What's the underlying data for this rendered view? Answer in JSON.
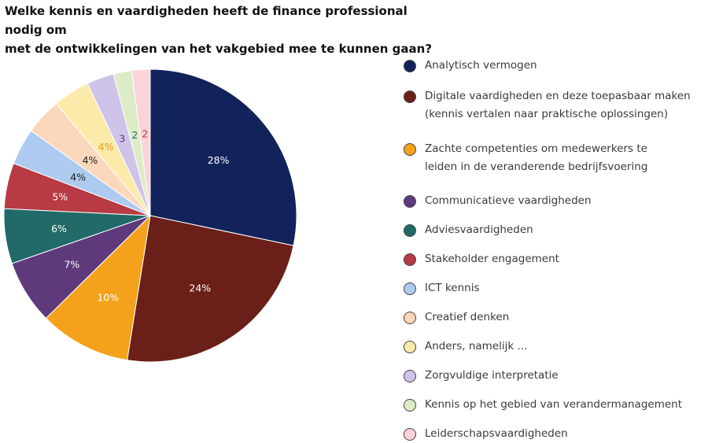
{
  "title": {
    "line1": "Welke kennis en vaardigheden heeft de finance professional nodig om",
    "line2": "met de ontwikkelingen van het vakgebied mee te kunnen gaan?"
  },
  "chart_data": {
    "type": "pie",
    "title": "Welke kennis en vaardigheden heeft de finance professional nodig om met de ontwikkelingen van het vakgebied mee te kunnen gaan?",
    "legend_position": "right",
    "slices": [
      {
        "label": "Analytisch vermogen",
        "value": 28,
        "display": "28%",
        "color": "#12225a",
        "label_color": "#ffffff"
      },
      {
        "label": "Digitale vaardigheden en deze toepasbaar maken (kennis vertalen naar praktische oplossingen)",
        "label_lines": [
          "Digitale vaardigheden en deze toepasbaar maken",
          "(kennis vertalen naar praktische oplossingen)"
        ],
        "value": 24,
        "display": "24%",
        "color": "#6b1f19",
        "label_color": "#ffffff"
      },
      {
        "label": "Zachte competenties om medewerkers te leiden in de veranderende bedrijfsvoering",
        "label_lines": [
          "Zachte competenties om medewerkers te",
          "leiden in de veranderende bedrijfsvoering"
        ],
        "value": 10,
        "display": "10%",
        "color": "#f4a21b",
        "label_color": "#ffffff"
      },
      {
        "label": "Communicatieve vaardigheden",
        "value": 7,
        "display": "7%",
        "color": "#5e3a7d",
        "label_color": "#ffffff"
      },
      {
        "label": "Adviesvaardigheden",
        "value": 6,
        "display": "6%",
        "color": "#216a68",
        "label_color": "#ffffff"
      },
      {
        "label": "Stakeholder engagement",
        "value": 5,
        "display": "5%",
        "color": "#b73a45",
        "label_color": "#ffffff"
      },
      {
        "label": "ICT kennis",
        "value": 4,
        "display": "4%",
        "color": "#aecaf0",
        "label_color": "#222222"
      },
      {
        "label": "Creatief denken",
        "value": 4,
        "display": "4%",
        "color": "#fbd7bc",
        "label_color": "#222222"
      },
      {
        "label": "Anders, namelijk ...",
        "value": 4,
        "display": "4%",
        "color": "#fbeaaa",
        "label_color": "#e0a020"
      },
      {
        "label": "Zorgvuldige interpretatie",
        "value": 3,
        "display": "3",
        "color": "#d0c3ea",
        "label_color": "#5e3a7d"
      },
      {
        "label": "Kennis op het gebied van verandermanagement",
        "value": 2,
        "display": "2",
        "color": "#dcecc6",
        "label_color": "#216a68"
      },
      {
        "label": "Leiderschapsvaardigheden",
        "value": 2,
        "display": "2",
        "color": "#fbd3d8",
        "label_color": "#b73a45"
      }
    ]
  }
}
